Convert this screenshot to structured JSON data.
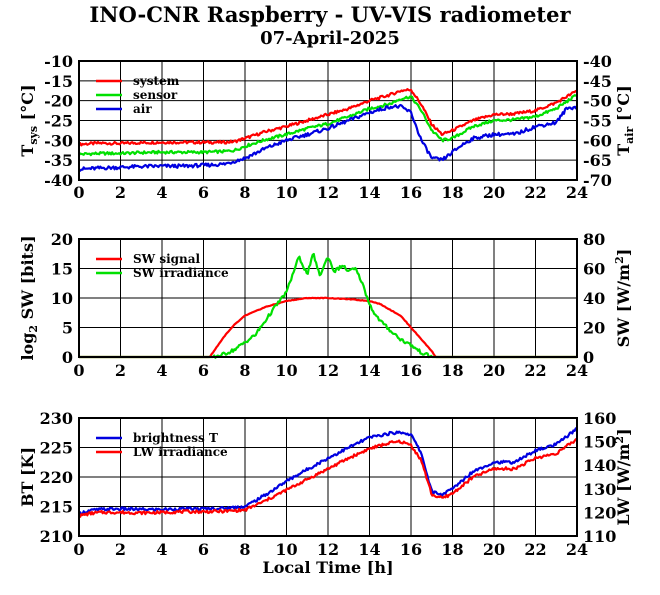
{
  "header": {
    "title": "INO-CNR Raspberry - UV-VIS radiometer",
    "subtitle": "07-April-2025"
  },
  "colors": {
    "red": "#ff0000",
    "green": "#00e000",
    "blue": "#0000e0",
    "grid": "#000000"
  },
  "chart_data": [
    {
      "type": "line",
      "xlabel": "",
      "ylabel": "T_sys [°C]",
      "ylabel_right": "T_air [°C]",
      "xlim": [
        0,
        24
      ],
      "ylim": [
        -40,
        -10
      ],
      "ylim_right": [
        -70,
        -40
      ],
      "xticks": [
        "0",
        "2",
        "4",
        "6",
        "8",
        "10",
        "12",
        "14",
        "16",
        "18",
        "20",
        "22",
        "24"
      ],
      "yticks": [
        "-10",
        "-15",
        "-20",
        "-25",
        "-30",
        "-35",
        "-40"
      ],
      "yticks_right": [
        "-40",
        "-45",
        "-50",
        "-55",
        "-60",
        "-65",
        "-70"
      ],
      "grid": true,
      "legend_position": "top-left",
      "series": [
        {
          "name": "system",
          "color": "#ff0000",
          "axis": "left",
          "x": [
            0,
            1,
            2,
            3,
            4,
            5,
            6,
            7,
            7.5,
            8,
            9,
            10,
            11,
            12,
            13,
            14,
            15,
            15.5,
            16,
            16.5,
            17,
            17.5,
            18,
            19,
            20,
            21,
            22,
            23,
            24
          ],
          "y": [
            -31,
            -30.7,
            -30.8,
            -30.6,
            -30.5,
            -30.5,
            -30.5,
            -30.5,
            -30.3,
            -29.5,
            -27.8,
            -26.5,
            -25,
            -23.5,
            -22,
            -20,
            -18.5,
            -17.5,
            -17.2,
            -21,
            -26,
            -28.5,
            -27.5,
            -25,
            -23.5,
            -23.3,
            -22.5,
            -20.5,
            -17.5
          ]
        },
        {
          "name": "sensor",
          "color": "#00e000",
          "axis": "left",
          "x": [
            0,
            1,
            2,
            3,
            4,
            5,
            6,
            7,
            7.5,
            8,
            9,
            10,
            11,
            12,
            13,
            14,
            15,
            15.5,
            16,
            16.5,
            17,
            17.5,
            18,
            19,
            20,
            21,
            22,
            23,
            24
          ],
          "y": [
            -33.5,
            -33.3,
            -33.3,
            -33.1,
            -33,
            -33,
            -33,
            -32.8,
            -32.5,
            -31.5,
            -29.8,
            -28.5,
            -27,
            -25.8,
            -24,
            -22,
            -20.8,
            -19.5,
            -19,
            -22.5,
            -27.5,
            -30,
            -29.5,
            -26.5,
            -25,
            -24.8,
            -24,
            -22,
            -18.5
          ]
        },
        {
          "name": "air",
          "color": "#0000e0",
          "axis": "right",
          "x": [
            0,
            1,
            2,
            3,
            4,
            5,
            6,
            7,
            8,
            9,
            10,
            11,
            12,
            13,
            14,
            15,
            15.5,
            16,
            16.5,
            17,
            17.5,
            18,
            18.5,
            19,
            20,
            21,
            22,
            23,
            23.5,
            24
          ],
          "y": [
            -67.3,
            -67,
            -66.8,
            -66.6,
            -66.5,
            -66.5,
            -66.3,
            -66,
            -64.5,
            -62,
            -60,
            -58.5,
            -57,
            -55,
            -53,
            -51.5,
            -51.5,
            -53,
            -60,
            -64.5,
            -65,
            -63,
            -61,
            -59.5,
            -58.5,
            -58.5,
            -56.5,
            -55.5,
            -52,
            -51.5
          ]
        }
      ]
    },
    {
      "type": "line",
      "xlabel": "",
      "ylabel": "log2 SW [bits]",
      "ylabel_right": "SW [W/m2]",
      "xlim": [
        0,
        24
      ],
      "ylim": [
        0,
        20
      ],
      "ylim_right": [
        0,
        80
      ],
      "xticks": [
        "0",
        "2",
        "4",
        "6",
        "8",
        "10",
        "12",
        "14",
        "16",
        "18",
        "20",
        "22",
        "24"
      ],
      "yticks": [
        "20",
        "15",
        "10",
        "5",
        "0"
      ],
      "yticks_right": [
        "80",
        "60",
        "40",
        "20",
        "0"
      ],
      "grid": true,
      "legend_position": "top-left",
      "series": [
        {
          "name": "SW signal",
          "color": "#ff0000",
          "axis": "left",
          "x": [
            0,
            6.3,
            6.5,
            7,
            7.5,
            8,
            9,
            10,
            11,
            12,
            13,
            14,
            14.5,
            15,
            15.5,
            16,
            16.5,
            17,
            17.2,
            24
          ],
          "y": [
            0,
            0,
            1,
            3.5,
            5.5,
            7,
            8.5,
            9.5,
            10,
            10,
            9.8,
            9.5,
            9,
            8,
            7,
            5,
            3,
            1,
            0,
            0
          ]
        },
        {
          "name": "SW irradiance",
          "color": "#00e000",
          "axis": "right",
          "x": [
            0,
            6.5,
            7,
            7.5,
            8,
            8.5,
            9,
            9.5,
            10,
            10.3,
            10.6,
            11,
            11.3,
            11.6,
            12,
            12.3,
            12.7,
            13,
            13.3,
            13.6,
            14,
            14.3,
            14.7,
            15,
            15.5,
            16,
            16.5,
            17,
            24
          ],
          "y": [
            0,
            0,
            2,
            5,
            10,
            15,
            25,
            35,
            44,
            56,
            68,
            56,
            70,
            55,
            68,
            58,
            62,
            58,
            60,
            52,
            36,
            28,
            22,
            18,
            12,
            8,
            3,
            0,
            0
          ]
        }
      ]
    },
    {
      "type": "line",
      "xlabel": "Local Time [h]",
      "ylabel": "BT [K]",
      "ylabel_right": "LW [W/m2]",
      "xlim": [
        0,
        24
      ],
      "ylim": [
        210,
        230
      ],
      "ylim_right": [
        110,
        160
      ],
      "xticks": [
        "0",
        "2",
        "4",
        "6",
        "8",
        "10",
        "12",
        "14",
        "16",
        "18",
        "20",
        "22",
        "24"
      ],
      "yticks": [
        "230",
        "225",
        "220",
        "215",
        "210"
      ],
      "yticks_right": [
        "160",
        "150",
        "140",
        "130",
        "120",
        "110"
      ],
      "grid": true,
      "legend_position": "top-left",
      "series": [
        {
          "name": "brightness T",
          "color": "#0000e0",
          "axis": "left",
          "x": [
            0,
            0.5,
            1,
            2,
            3,
            4,
            5,
            6,
            7,
            8,
            9,
            10,
            11,
            12,
            13,
            14,
            15,
            15.5,
            16,
            16.5,
            17,
            17.5,
            18,
            19,
            20,
            21,
            22,
            23,
            24
          ],
          "y": [
            213.8,
            214.3,
            214.5,
            214.6,
            214.5,
            214.5,
            214.6,
            214.6,
            214.7,
            215,
            217,
            219.3,
            221.3,
            223.2,
            225,
            226.7,
            227.4,
            227.6,
            227.2,
            224,
            217.5,
            217,
            218,
            221,
            222.5,
            222.5,
            224.5,
            225.5,
            228.2
          ]
        },
        {
          "name": "LW irradiance",
          "color": "#ff0000",
          "axis": "right",
          "x": [
            0,
            0.5,
            1,
            2,
            3,
            4,
            5,
            6,
            7,
            8,
            9,
            10,
            11,
            12,
            13,
            14,
            15,
            15.5,
            16,
            16.5,
            17,
            17.5,
            18,
            19,
            20,
            21,
            22,
            23,
            24
          ],
          "y": [
            118.5,
            119.5,
            120,
            120,
            119.8,
            120,
            120.3,
            120.3,
            120.5,
            121,
            125,
            129.5,
            134,
            138.5,
            143,
            147,
            149.5,
            150,
            148.5,
            142,
            127.5,
            126,
            128,
            135,
            138.5,
            138.5,
            143,
            145,
            151
          ]
        }
      ]
    }
  ]
}
